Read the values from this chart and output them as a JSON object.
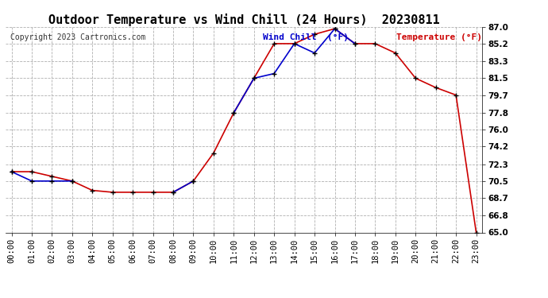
{
  "title": "Outdoor Temperature vs Wind Chill (24 Hours)  20230811",
  "copyright": "Copyright 2023 Cartronics.com",
  "legend_wind_chill": "Wind Chill  (°F)",
  "legend_temperature": "Temperature (°F)",
  "x_labels": [
    "00:00",
    "01:00",
    "02:00",
    "03:00",
    "04:00",
    "05:00",
    "06:00",
    "07:00",
    "08:00",
    "09:00",
    "10:00",
    "11:00",
    "12:00",
    "13:00",
    "14:00",
    "15:00",
    "16:00",
    "17:00",
    "18:00",
    "19:00",
    "20:00",
    "21:00",
    "22:00",
    "23:00"
  ],
  "temperature": [
    71.5,
    71.5,
    71.0,
    70.5,
    69.5,
    69.3,
    69.3,
    69.3,
    69.3,
    70.5,
    73.5,
    77.8,
    81.5,
    85.2,
    85.2,
    86.2,
    86.8,
    85.2,
    85.2,
    84.2,
    81.5,
    80.5,
    79.7,
    65.0
  ],
  "wind_chill": [
    71.5,
    70.5,
    70.5,
    70.5,
    null,
    null,
    null,
    null,
    69.3,
    70.5,
    null,
    77.8,
    81.5,
    82.0,
    85.2,
    84.2,
    86.8,
    85.2,
    null,
    null,
    null,
    null,
    null,
    null
  ],
  "ylim_min": 65.0,
  "ylim_max": 87.0,
  "yticks": [
    65.0,
    66.8,
    68.7,
    70.5,
    72.3,
    74.2,
    76.0,
    77.8,
    79.7,
    81.5,
    83.3,
    85.2,
    87.0
  ],
  "temp_color": "#cc0000",
  "wind_color": "#0000cc",
  "background_color": "#ffffff",
  "grid_color": "#b0b0b0",
  "title_fontsize": 11,
  "tick_fontsize": 7.5,
  "copyright_fontsize": 7,
  "legend_fontsize": 8
}
